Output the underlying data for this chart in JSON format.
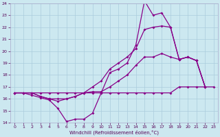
{
  "xlabel": "Windchill (Refroidissement éolien,°C)",
  "background_color": "#cce8f0",
  "grid_color": "#aaccdd",
  "line_color": "#880088",
  "xlim": [
    -0.5,
    23.5
  ],
  "ylim": [
    14,
    24
  ],
  "yticks": [
    14,
    15,
    16,
    17,
    18,
    19,
    20,
    21,
    22,
    23,
    24
  ],
  "xticks": [
    0,
    1,
    2,
    3,
    4,
    5,
    6,
    7,
    8,
    9,
    10,
    11,
    12,
    13,
    14,
    15,
    16,
    17,
    18,
    19,
    20,
    21,
    22,
    23
  ],
  "curve1_x": [
    0,
    1,
    2,
    3,
    4,
    5,
    6,
    7,
    8,
    9,
    10,
    11,
    12,
    13,
    14,
    15,
    16,
    17,
    18,
    19,
    20,
    21,
    22,
    23
  ],
  "curve1_y": [
    16.5,
    16.5,
    16.5,
    16.5,
    16.5,
    16.5,
    16.5,
    16.5,
    16.5,
    16.5,
    16.5,
    16.5,
    16.5,
    16.5,
    16.5,
    16.5,
    16.5,
    16.5,
    16.5,
    17.0,
    17.0,
    17.0,
    17.0,
    17.0
  ],
  "curve2_x": [
    0,
    1,
    2,
    3,
    4,
    5,
    6,
    7,
    8,
    9,
    10,
    11,
    12,
    13,
    14,
    15,
    16,
    17,
    18,
    19,
    20,
    21,
    22
  ],
  "curve2_y": [
    16.5,
    16.5,
    16.3,
    16.1,
    15.9,
    15.2,
    14.1,
    14.3,
    14.3,
    14.8,
    16.5,
    18.2,
    18.5,
    19.0,
    20.5,
    24.2,
    23.0,
    23.2,
    22.0,
    19.3,
    19.5,
    19.2,
    17.0
  ],
  "curve3_x": [
    0,
    1,
    2,
    3,
    4,
    5,
    6,
    7,
    8,
    9,
    10,
    11,
    12,
    13,
    14,
    15,
    16,
    17,
    18,
    19,
    20,
    21,
    22
  ],
  "curve3_y": [
    16.5,
    16.5,
    16.5,
    16.2,
    16.0,
    16.0,
    16.0,
    16.2,
    16.5,
    17.0,
    17.5,
    18.5,
    19.0,
    19.5,
    20.2,
    21.8,
    22.0,
    22.1,
    22.0,
    19.3,
    19.5,
    19.2,
    17.0
  ],
  "curve4_x": [
    0,
    1,
    2,
    3,
    4,
    5,
    6,
    7,
    8,
    9,
    10,
    11,
    12,
    13,
    14,
    15,
    16,
    17,
    18,
    19,
    20,
    21,
    22
  ],
  "curve4_y": [
    16.5,
    16.5,
    16.5,
    16.2,
    16.0,
    15.8,
    16.0,
    16.2,
    16.5,
    16.6,
    16.6,
    17.0,
    17.5,
    18.0,
    18.8,
    19.5,
    19.5,
    19.8,
    19.5,
    19.3,
    19.5,
    19.2,
    17.0
  ]
}
